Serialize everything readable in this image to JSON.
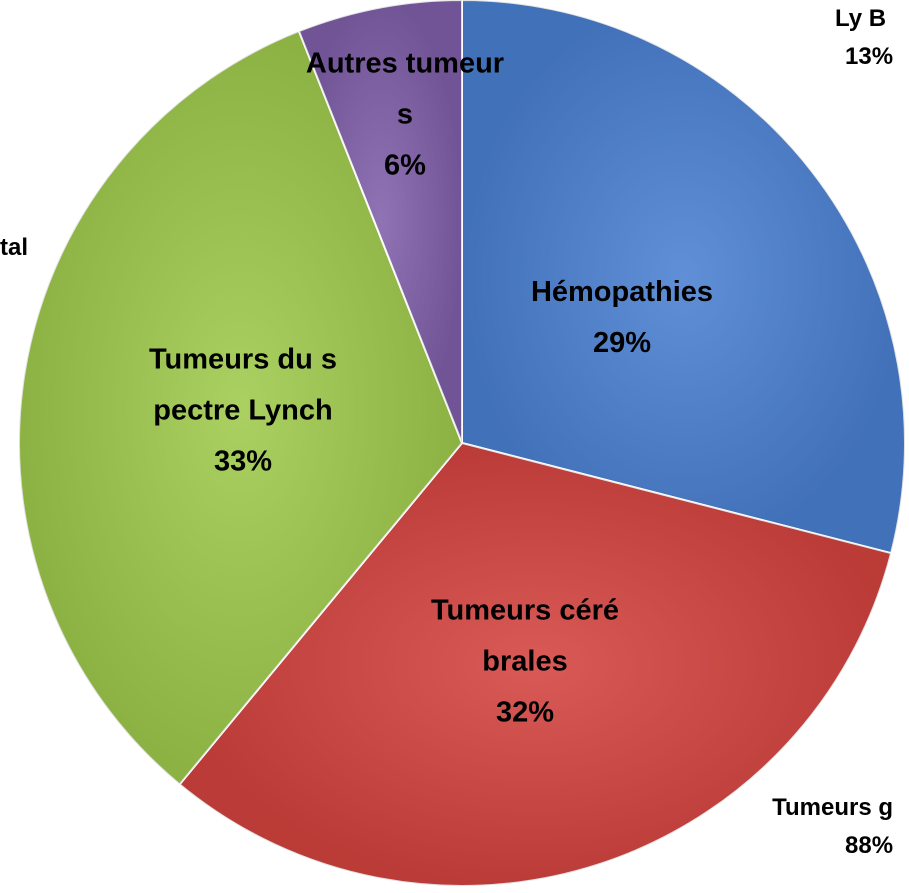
{
  "chart_data": {
    "type": "pie",
    "categories": [
      "Hémopathies",
      "Tumeurs cérébrales",
      "Tumeurs du spectre Lynch",
      "Autres tumeurs"
    ],
    "values": [
      29,
      32,
      33,
      6
    ],
    "value_labels": [
      "29%",
      "32%",
      "33%",
      "6%"
    ],
    "colors": [
      "#4a80d2",
      "#d4433f",
      "#9fca4c",
      "#8060ab"
    ],
    "annotations": [
      [
        "Ly B",
        "13%"
      ],
      [
        "tal"
      ],
      [
        "Tumeurs g",
        "88%"
      ]
    ]
  }
}
